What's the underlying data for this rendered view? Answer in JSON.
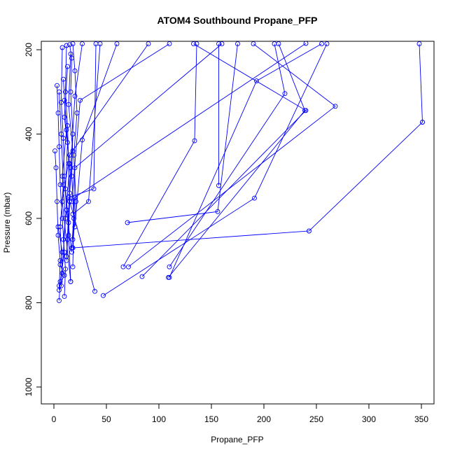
{
  "chart_data": {
    "type": "line",
    "title": "ATOM4 Southbound Propane_PFP",
    "xlabel": "Propane_PFP",
    "ylabel": "Pressure (mbar)",
    "xlim": [
      -12,
      362
    ],
    "ylim": [
      1040,
      180
    ],
    "y_reversed": true,
    "x_ticks": [
      0,
      50,
      100,
      150,
      200,
      250,
      300,
      350
    ],
    "y_ticks": [
      200,
      400,
      600,
      800,
      1000
    ],
    "grid": false,
    "legend": "none",
    "colors": {
      "series": "#0000ff",
      "axis": "#000000"
    },
    "series": [
      {
        "x": [
          1,
          2,
          3,
          4,
          6,
          5
        ],
        "y": [
          440,
          480,
          560,
          640,
          700,
          770
        ]
      },
      {
        "x": [
          3,
          4,
          5,
          6,
          8,
          10,
          6,
          5
        ],
        "y": [
          285,
          350,
          430,
          520,
          600,
          680,
          750,
          795
        ]
      },
      {
        "x": [
          8,
          7,
          9,
          10,
          12,
          9,
          11,
          10
        ],
        "y": [
          195,
          325,
          410,
          500,
          580,
          650,
          720,
          785
        ]
      },
      {
        "x": [
          12,
          11,
          13,
          14,
          15,
          14,
          16
        ],
        "y": [
          190,
          300,
          380,
          470,
          560,
          640,
          750
        ]
      },
      {
        "x": [
          15,
          17,
          16,
          18,
          17,
          19,
          18
        ],
        "y": [
          188,
          220,
          300,
          400,
          500,
          600,
          715
        ]
      },
      {
        "x": [
          18,
          20,
          22,
          19,
          21,
          18
        ],
        "y": [
          186,
          250,
          350,
          450,
          560,
          670
        ]
      },
      {
        "x": [
          240,
          20,
          17
        ],
        "y": [
          185,
          550,
          670
        ]
      },
      {
        "x": [
          351,
          243,
          18
        ],
        "y": [
          372,
          630,
          670
        ]
      },
      {
        "x": [
          160,
          20,
          18
        ],
        "y": [
          186,
          480,
          650
        ]
      },
      {
        "x": [
          190,
          268,
          71
        ],
        "y": [
          186,
          334,
          715
        ]
      },
      {
        "x": [
          133,
          240,
          84
        ],
        "y": [
          186,
          344,
          738
        ]
      },
      {
        "x": [
          210,
          220,
          110
        ],
        "y": [
          186,
          304,
          715
        ]
      },
      {
        "x": [
          255,
          193,
          110
        ],
        "y": [
          186,
          274,
          740
        ]
      },
      {
        "x": [
          260,
          191,
          47
        ],
        "y": [
          186,
          552,
          783
        ]
      },
      {
        "x": [
          175,
          156,
          70
        ],
        "y": [
          186,
          584,
          610
        ]
      },
      {
        "x": [
          136,
          134,
          66
        ],
        "y": [
          186,
          416,
          715
        ]
      },
      {
        "x": [
          157,
          157
        ],
        "y": [
          186,
          522
        ]
      },
      {
        "x": [
          348,
          351
        ],
        "y": [
          186,
          372
        ]
      },
      {
        "x": [
          214,
          239,
          109
        ],
        "y": [
          186,
          344,
          740
        ]
      },
      {
        "x": [
          110,
          25,
          17
        ],
        "y": [
          186,
          320,
          560
        ]
      },
      {
        "x": [
          60,
          27,
          20
        ],
        "y": [
          186,
          414,
          620
        ]
      },
      {
        "x": [
          44,
          33,
          18
        ],
        "y": [
          186,
          560,
          590
        ]
      },
      {
        "x": [
          40,
          38,
          14,
          39
        ],
        "y": [
          186,
          530,
          550,
          773
        ]
      },
      {
        "x": [
          27,
          20,
          16,
          12
        ],
        "y": [
          186,
          310,
          480,
          690
        ]
      },
      {
        "x": [
          90,
          15,
          8,
          16
        ],
        "y": [
          186,
          450,
          560,
          750
        ]
      },
      {
        "x": [
          5,
          7,
          9,
          6,
          8
        ],
        "y": [
          300,
          400,
          520,
          620,
          730
        ]
      },
      {
        "x": [
          10,
          13,
          11,
          14,
          12
        ],
        "y": [
          320,
          420,
          530,
          610,
          700
        ]
      },
      {
        "x": [
          13,
          10,
          15,
          12,
          17
        ],
        "y": [
          240,
          360,
          470,
          580,
          680
        ]
      },
      {
        "x": [
          9,
          12,
          8,
          11,
          7
        ],
        "y": [
          270,
          390,
          500,
          600,
          760
        ]
      },
      {
        "x": [
          16,
          14,
          18,
          15,
          13
        ],
        "y": [
          210,
          330,
          440,
          540,
          650
        ]
      },
      {
        "x": [
          4,
          8,
          6,
          10,
          5
        ],
        "y": [
          620,
          680,
          710,
          735,
          760
        ]
      }
    ]
  }
}
